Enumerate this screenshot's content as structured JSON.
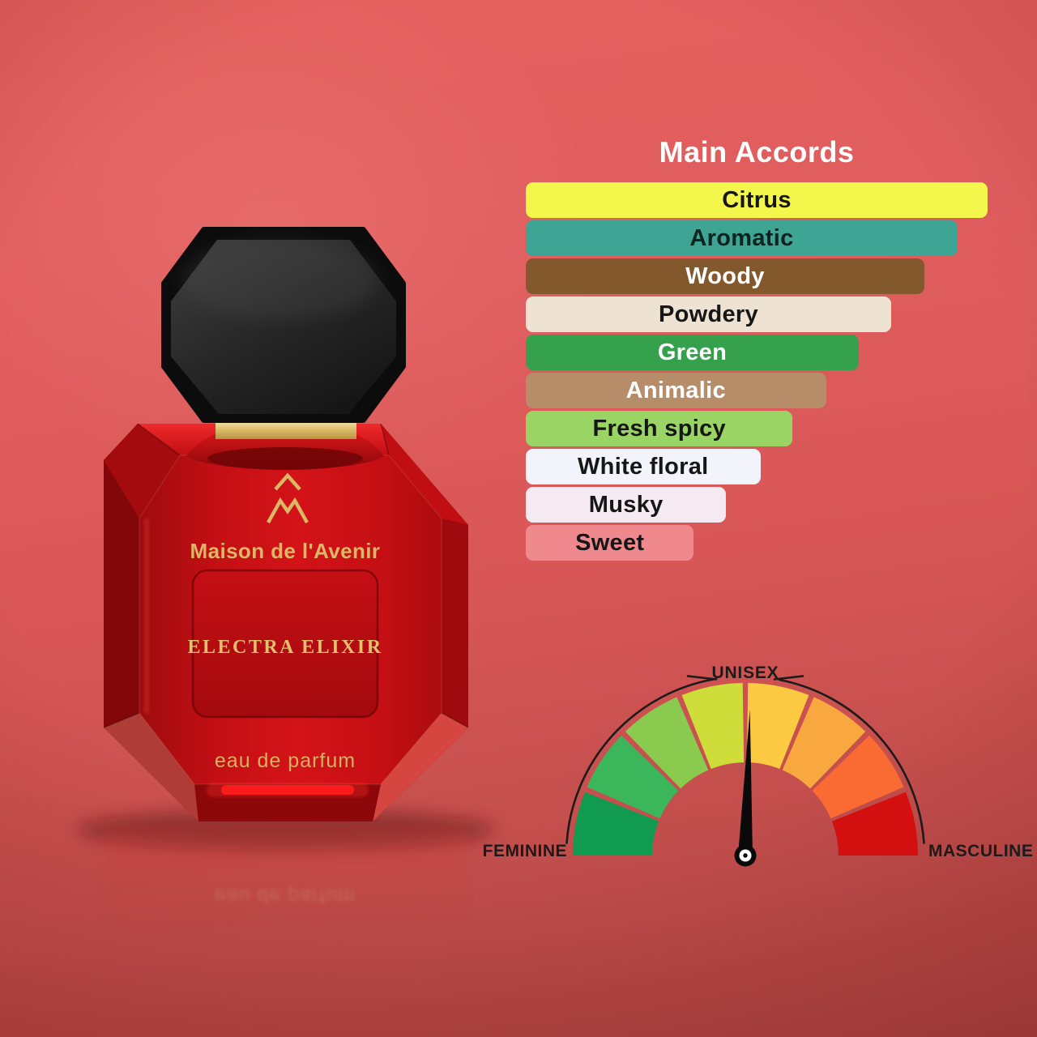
{
  "page": {
    "background": {
      "top": "#e4615f",
      "middle": "#d85756",
      "bottom": "#a74240"
    }
  },
  "product": {
    "brand": "Maison de l'Avenir",
    "name": "ELECTRA ELIXIR",
    "type": "eau de parfum",
    "reflection_text": "eau de parfum",
    "monogram": "AM-mountain-monogram",
    "colors": {
      "glass_red": "#cc1015",
      "cap_black": "#141414",
      "collar_gold": "#dcbc67",
      "label_gold": "#dcb765"
    }
  },
  "chart_data": [
    {
      "type": "bar",
      "title": "Main Accords",
      "title_color": "#ffffff",
      "orientation": "horizontal",
      "categories": [
        "Citrus",
        "Aromatic",
        "Woody",
        "Powdery",
        "Green",
        "Animalic",
        "Fresh spicy",
        "White floral",
        "Musky",
        "Sweet"
      ],
      "values": [
        100,
        93.5,
        86.3,
        79.1,
        72.1,
        65.0,
        57.8,
        50.8,
        43.4,
        36.4
      ],
      "unit": "percent-of-max-bar-width",
      "bar_colors": [
        "#f3f74b",
        "#3ea493",
        "#84582d",
        "#eee2d2",
        "#35a14c",
        "#b68c69",
        "#9ad464",
        "#f3f3fb",
        "#f5eaf2",
        "#f0898e"
      ],
      "text_colors": [
        "#161616",
        "#0b2420",
        "#ffffff",
        "#161616",
        "#ffffff",
        "#ffffff",
        "#161616",
        "#161616",
        "#161616",
        "#161616"
      ],
      "grid": false,
      "axes": false,
      "legend": false
    },
    {
      "type": "gauge",
      "labels": {
        "left": "FEMININE",
        "top": "UNISEX",
        "right": "MASCULINE"
      },
      "segment_colors": [
        "#109b51",
        "#3cb65a",
        "#8aca4f",
        "#cedd3a",
        "#fbca42",
        "#f8a83f",
        "#fa6a33",
        "#d30f10"
      ],
      "range": [
        0,
        100
      ],
      "needle_value": 51,
      "label_color": "#1b1b1b",
      "needle_color": "#0a0a0a"
    }
  ]
}
